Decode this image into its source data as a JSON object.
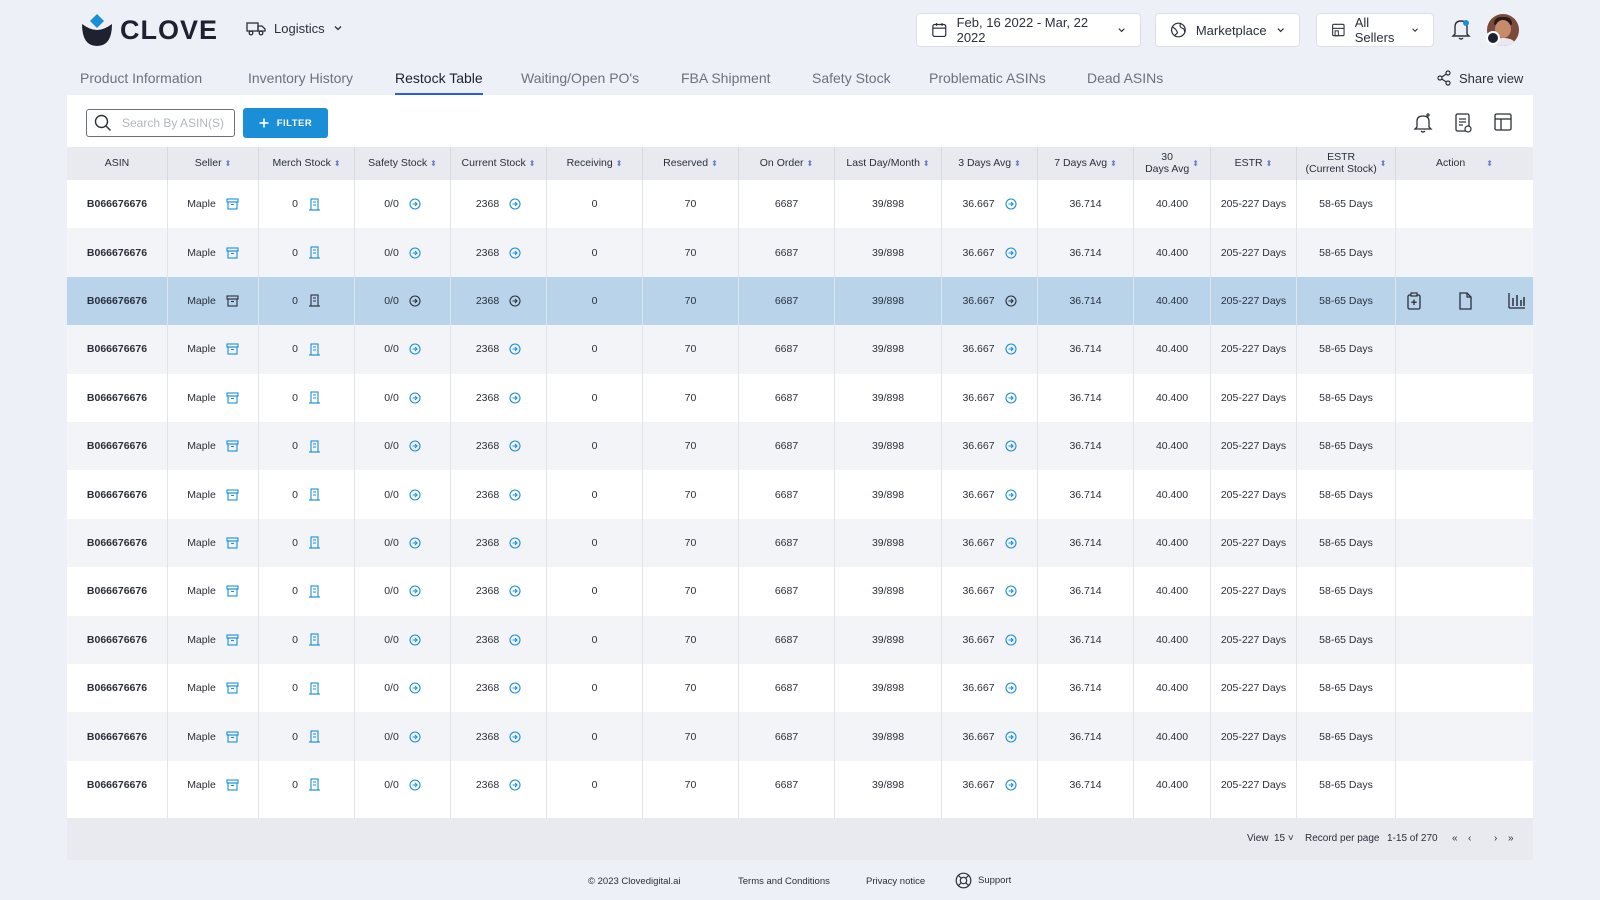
{
  "app": {
    "brand": "CLOVE",
    "module": "Logistics",
    "date_range": "Feb, 16 2022 - Mar, 22 2022",
    "marketplace": "Marketplace",
    "sellers": "All Sellers",
    "accent_color": "#1a8fd8"
  },
  "tabs": [
    {
      "label": "Product Information",
      "active": false
    },
    {
      "label": "Inventory History",
      "active": false
    },
    {
      "label": "Restock Table",
      "active": true
    },
    {
      "label": "Waiting/Open PO's",
      "active": false
    },
    {
      "label": "FBA Shipment",
      "active": false
    },
    {
      "label": "Safety Stock",
      "active": false
    },
    {
      "label": "Problematic ASINs",
      "active": false
    },
    {
      "label": "Dead ASINs",
      "active": false
    }
  ],
  "share_label": "Share view",
  "toolbar": {
    "search_placeholder": "Search By ASIN(S)",
    "filter_label": "FILTER"
  },
  "table": {
    "columns": [
      "ASIN",
      "Seller",
      "Merch Stock",
      "Safety Stock",
      "Current Stock",
      "Receiving",
      "Reserved",
      "On Order",
      "Last Day/Month",
      "3 Days Avg",
      "7 Days Avg",
      "30\nDays Avg",
      "ESTR",
      "ESTR\n(Current Stock)",
      "Action"
    ],
    "selected_row": 2,
    "rows": [
      [
        "B066676676",
        "Maple",
        "0",
        "0/0",
        "2368",
        "0",
        "70",
        "6687",
        "39/898",
        "36.667",
        "36.714",
        "40.400",
        "205-227 Days",
        "58-65 Days"
      ],
      [
        "B066676676",
        "Maple",
        "0",
        "0/0",
        "2368",
        "0",
        "70",
        "6687",
        "39/898",
        "36.667",
        "36.714",
        "40.400",
        "205-227 Days",
        "58-65 Days"
      ],
      [
        "B066676676",
        "Maple",
        "0",
        "0/0",
        "2368",
        "0",
        "70",
        "6687",
        "39/898",
        "36.667",
        "36.714",
        "40.400",
        "205-227 Days",
        "58-65 Days"
      ],
      [
        "B066676676",
        "Maple",
        "0",
        "0/0",
        "2368",
        "0",
        "70",
        "6687",
        "39/898",
        "36.667",
        "36.714",
        "40.400",
        "205-227 Days",
        "58-65 Days"
      ],
      [
        "B066676676",
        "Maple",
        "0",
        "0/0",
        "2368",
        "0",
        "70",
        "6687",
        "39/898",
        "36.667",
        "36.714",
        "40.400",
        "205-227 Days",
        "58-65 Days"
      ],
      [
        "B066676676",
        "Maple",
        "0",
        "0/0",
        "2368",
        "0",
        "70",
        "6687",
        "39/898",
        "36.667",
        "36.714",
        "40.400",
        "205-227 Days",
        "58-65 Days"
      ],
      [
        "B066676676",
        "Maple",
        "0",
        "0/0",
        "2368",
        "0",
        "70",
        "6687",
        "39/898",
        "36.667",
        "36.714",
        "40.400",
        "205-227 Days",
        "58-65 Days"
      ],
      [
        "B066676676",
        "Maple",
        "0",
        "0/0",
        "2368",
        "0",
        "70",
        "6687",
        "39/898",
        "36.667",
        "36.714",
        "40.400",
        "205-227 Days",
        "58-65 Days"
      ],
      [
        "B066676676",
        "Maple",
        "0",
        "0/0",
        "2368",
        "0",
        "70",
        "6687",
        "39/898",
        "36.667",
        "36.714",
        "40.400",
        "205-227 Days",
        "58-65 Days"
      ],
      [
        "B066676676",
        "Maple",
        "0",
        "0/0",
        "2368",
        "0",
        "70",
        "6687",
        "39/898",
        "36.667",
        "36.714",
        "40.400",
        "205-227 Days",
        "58-65 Days"
      ],
      [
        "B066676676",
        "Maple",
        "0",
        "0/0",
        "2368",
        "0",
        "70",
        "6687",
        "39/898",
        "36.667",
        "36.714",
        "40.400",
        "205-227 Days",
        "58-65 Days"
      ],
      [
        "B066676676",
        "Maple",
        "0",
        "0/0",
        "2368",
        "0",
        "70",
        "6687",
        "39/898",
        "36.667",
        "36.714",
        "40.400",
        "205-227 Days",
        "58-65 Days"
      ],
      [
        "B066676676",
        "Maple",
        "0",
        "0/0",
        "2368",
        "0",
        "70",
        "6687",
        "39/898",
        "36.667",
        "36.714",
        "40.400",
        "205-227 Days",
        "58-65 Days"
      ]
    ]
  },
  "pagination": {
    "view_label": "View",
    "per_page": "15",
    "per_page_label": "Record per page",
    "range": "1-15 of 270"
  },
  "footer": {
    "copyright": "© 2023 Clovedigital.ai",
    "terms": "Terms and Conditions",
    "privacy": "Privacy notice",
    "support": "Support"
  }
}
